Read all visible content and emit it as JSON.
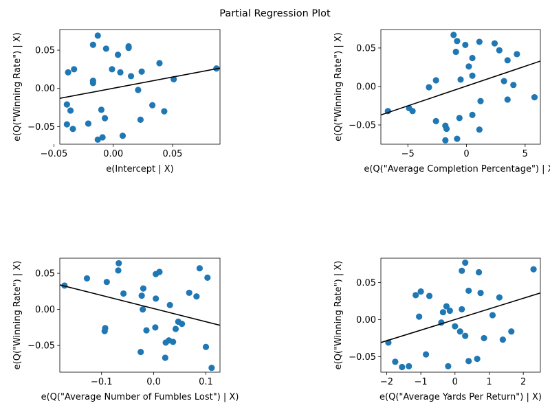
{
  "figure": {
    "suptitle": "Partial Regression Plot"
  },
  "colors": {
    "points": "#1f77b4",
    "line": "#000000"
  },
  "chart_data": [
    {
      "type": "scatter",
      "title": "",
      "xlabel": "e(Intercept | X)",
      "ylabel": "e(Q(\"Winning Rate\") | X)",
      "xlim": [
        -0.045,
        0.09
      ],
      "ylim": [
        -0.073,
        0.077
      ],
      "xticks": [
        -0.05,
        0.0,
        0.05
      ],
      "xticklabels": [
        "−0.05",
        "0.00",
        "0.05"
      ],
      "yticks": [
        -0.05,
        0.0,
        0.05
      ],
      "yticklabels": [
        "−0.05",
        "0.00",
        "0.05"
      ],
      "points": [
        [
          -0.013,
          0.069
        ],
        [
          -0.017,
          0.057
        ],
        [
          -0.006,
          0.052
        ],
        [
          0.004,
          0.044
        ],
        [
          0.013,
          0.055
        ],
        [
          0.013,
          0.053
        ],
        [
          0.039,
          0.033
        ],
        [
          -0.033,
          0.025
        ],
        [
          -0.038,
          0.021
        ],
        [
          -0.001,
          0.025
        ],
        [
          0.006,
          0.021
        ],
        [
          0.024,
          0.022
        ],
        [
          0.015,
          0.016
        ],
        [
          -0.017,
          0.01
        ],
        [
          -0.017,
          0.007
        ],
        [
          0.051,
          0.012
        ],
        [
          0.087,
          0.026
        ],
        [
          0.021,
          -0.002
        ],
        [
          -0.039,
          -0.021
        ],
        [
          -0.036,
          -0.029
        ],
        [
          -0.01,
          -0.028
        ],
        [
          0.033,
          -0.022
        ],
        [
          0.043,
          -0.03
        ],
        [
          -0.007,
          -0.039
        ],
        [
          0.023,
          -0.041
        ],
        [
          -0.039,
          -0.047
        ],
        [
          -0.021,
          -0.046
        ],
        [
          -0.034,
          -0.053
        ],
        [
          0.008,
          -0.062
        ],
        [
          -0.009,
          -0.064
        ],
        [
          -0.013,
          -0.067
        ]
      ],
      "fit_line": [
        [
          -0.045,
          -0.013
        ],
        [
          0.09,
          0.0265
        ]
      ]
    },
    {
      "type": "scatter",
      "title": "",
      "xlabel": "e(Q(\"Average Completion Percentage\") | X)",
      "ylabel": "e(Q(\"Winning Rate\") | X)",
      "xlim": [
        -7.3,
        6.3
      ],
      "ylim": [
        -0.075,
        0.074
      ],
      "xticks": [
        -5,
        0,
        5
      ],
      "xticklabels": [
        "−5",
        "0",
        "5"
      ],
      "yticks": [
        -0.05,
        0.0,
        0.05
      ],
      "yticklabels": [
        "−0.05",
        "0.00",
        "0.05"
      ],
      "points": [
        [
          -1.1,
          0.067
        ],
        [
          -0.8,
          0.059
        ],
        [
          1.1,
          0.058
        ],
        [
          -0.9,
          0.045
        ],
        [
          -0.1,
          0.054
        ],
        [
          2.4,
          0.056
        ],
        [
          2.8,
          0.047
        ],
        [
          4.3,
          0.042
        ],
        [
          0.5,
          0.037
        ],
        [
          3.5,
          0.034
        ],
        [
          0.2,
          0.026
        ],
        [
          0.5,
          0.014
        ],
        [
          -2.6,
          0.008
        ],
        [
          -0.5,
          0.009
        ],
        [
          3.2,
          0.007
        ],
        [
          4.0,
          0.002
        ],
        [
          -3.2,
          -0.001
        ],
        [
          5.8,
          -0.014
        ],
        [
          3.5,
          -0.017
        ],
        [
          1.2,
          -0.019
        ],
        [
          -6.7,
          -0.032
        ],
        [
          -4.6,
          -0.032
        ],
        [
          -4.9,
          -0.028
        ],
        [
          0.5,
          -0.037
        ],
        [
          -0.6,
          -0.041
        ],
        [
          -2.6,
          -0.045
        ],
        [
          -1.8,
          -0.051
        ],
        [
          -1.7,
          -0.055
        ],
        [
          1.1,
          -0.056
        ],
        [
          -0.8,
          -0.068
        ],
        [
          -1.8,
          -0.07
        ]
      ],
      "fit_line": [
        [
          -7.3,
          -0.037
        ],
        [
          6.3,
          0.033
        ]
      ]
    },
    {
      "type": "scatter",
      "title": "",
      "xlabel": "e(Q(\"Average Number of Fumbles Lost\") | X)",
      "ylabel": "e(Q(\"Winning Rate\") | X)",
      "xlim": [
        -0.18,
        0.127
      ],
      "ylim": [
        -0.087,
        0.071
      ],
      "xticks": [
        -0.1,
        0.0,
        0.1
      ],
      "xticklabels": [
        "−0.1",
        "0.0",
        "0.1"
      ],
      "yticks": [
        -0.05,
        0.0,
        0.05
      ],
      "yticklabels": [
        "−0.05",
        "0.00",
        "0.05"
      ],
      "points": [
        [
          -0.067,
          0.064
        ],
        [
          0.088,
          0.057
        ],
        [
          -0.068,
          0.054
        ],
        [
          0.011,
          0.052
        ],
        [
          0.004,
          0.049
        ],
        [
          0.103,
          0.044
        ],
        [
          -0.128,
          0.043
        ],
        [
          -0.09,
          0.038
        ],
        [
          -0.171,
          0.033
        ],
        [
          -0.02,
          0.029
        ],
        [
          0.068,
          0.023
        ],
        [
          -0.058,
          0.022
        ],
        [
          -0.023,
          0.019
        ],
        [
          0.082,
          0.018
        ],
        [
          0.004,
          0.015
        ],
        [
          0.031,
          0.006
        ],
        [
          -0.021,
          0.0
        ],
        [
          0.047,
          -0.017
        ],
        [
          0.054,
          -0.02
        ],
        [
          0.003,
          -0.025
        ],
        [
          -0.093,
          -0.026
        ],
        [
          0.042,
          -0.027
        ],
        [
          -0.094,
          -0.03
        ],
        [
          -0.014,
          -0.029
        ],
        [
          0.029,
          -0.043
        ],
        [
          0.037,
          -0.045
        ],
        [
          0.023,
          -0.046
        ],
        [
          0.1,
          -0.052
        ],
        [
          -0.025,
          -0.059
        ],
        [
          0.022,
          -0.067
        ],
        [
          0.111,
          -0.081
        ]
      ],
      "fit_line": [
        [
          -0.18,
          0.034
        ],
        [
          0.127,
          -0.022
        ]
      ]
    },
    {
      "type": "scatter",
      "title": "",
      "xlabel": "e(Q(\"Average Yards Per Return\") | X)",
      "ylabel": "e(Q(\"Winning Rate\") | X)",
      "xlim": [
        -2.17,
        2.5
      ],
      "ylim": [
        -0.071,
        0.083
      ],
      "xticks": [
        -2,
        -1,
        0,
        1,
        2
      ],
      "xticklabels": [
        "−2",
        "−1",
        "0",
        "1",
        "2"
      ],
      "yticks": [
        -0.05,
        0.0,
        0.05
      ],
      "yticklabels": [
        "−0.05",
        "0.00",
        "0.05"
      ],
      "points": [
        [
          0.3,
          0.077
        ],
        [
          2.3,
          0.068
        ],
        [
          0.2,
          0.066
        ],
        [
          0.7,
          0.064
        ],
        [
          0.4,
          0.039
        ],
        [
          -1.0,
          0.038
        ],
        [
          0.75,
          0.036
        ],
        [
          -1.15,
          0.033
        ],
        [
          -0.75,
          0.032
        ],
        [
          1.3,
          0.03
        ],
        [
          -0.25,
          0.018
        ],
        [
          -0.15,
          0.012
        ],
        [
          0.2,
          0.014
        ],
        [
          -0.35,
          0.01
        ],
        [
          -1.05,
          0.004
        ],
        [
          1.1,
          0.006
        ],
        [
          -0.4,
          -0.004
        ],
        [
          0.0,
          -0.009
        ],
        [
          0.15,
          -0.016
        ],
        [
          1.65,
          -0.016
        ],
        [
          0.3,
          -0.022
        ],
        [
          0.85,
          -0.025
        ],
        [
          1.4,
          -0.027
        ],
        [
          -1.95,
          -0.031
        ],
        [
          -0.85,
          -0.047
        ],
        [
          0.4,
          -0.056
        ],
        [
          0.65,
          -0.053
        ],
        [
          -1.75,
          -0.057
        ],
        [
          -1.35,
          -0.063
        ],
        [
          -1.55,
          -0.064
        ],
        [
          -0.2,
          -0.063
        ]
      ],
      "fit_line": [
        [
          -2.17,
          -0.031
        ],
        [
          2.5,
          0.036
        ]
      ]
    }
  ]
}
